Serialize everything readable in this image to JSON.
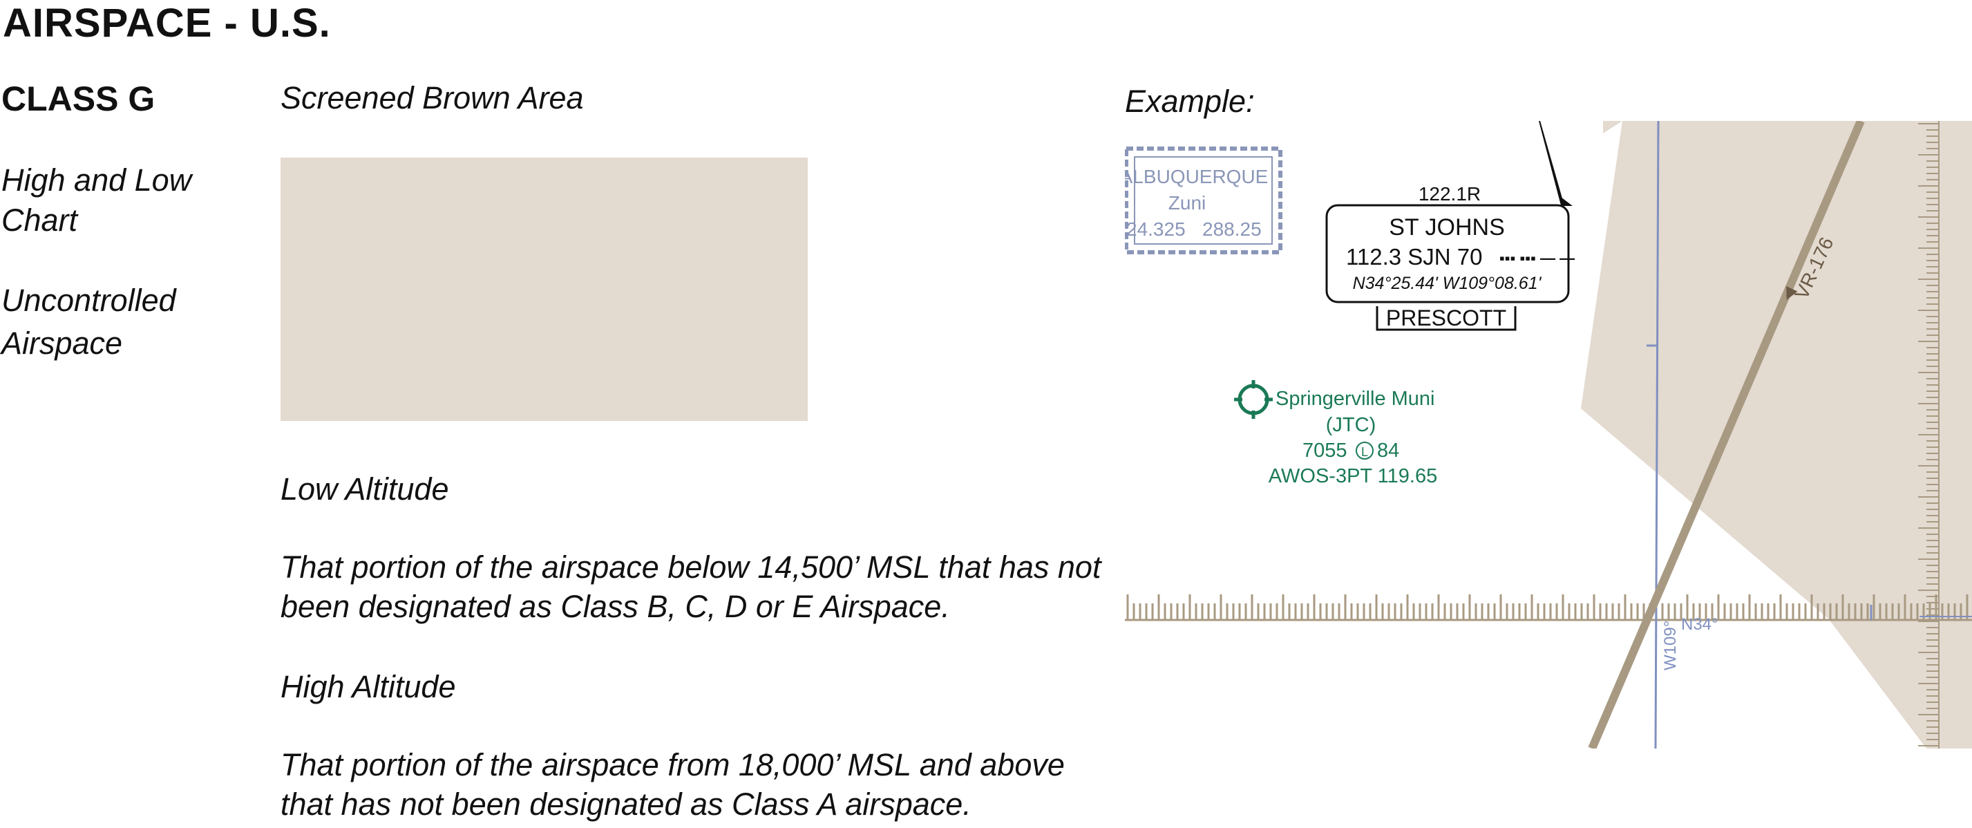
{
  "header": {
    "title": "AIRSPACE - U.S."
  },
  "left": {
    "class_label": "CLASS G",
    "chart_type": "High and Low Chart",
    "airspace_type": "Uncontrolled Airspace"
  },
  "legend": {
    "swatch_label": "Screened Brown Area",
    "swatch_color": "#e3dad0"
  },
  "low": {
    "heading": "Low Altitude",
    "text": "That portion of the airspace below 14,500’ MSL that has not been designated as Class B, C, D or E Airspace."
  },
  "high": {
    "heading": "High Altitude",
    "text": "That portion of the airspace from 18,000’ MSL and above that has not been designated as Class A airspace."
  },
  "example": {
    "label": "Example:",
    "fss_name": "ALBUQUERQUE",
    "fss_sub": "Zuni",
    "fss_freq_left": "24.325",
    "fss_freq_right": "288.25",
    "nav_freq": "122.1R",
    "nav_name": "ST JOHNS",
    "nav_ident": "112.3 SJN 70",
    "nav_morse": "▪▪▪ ▪▪▪ — —",
    "nav_coords": "N34°25.44' W109°08.61'",
    "nav_fss": "PRESCOTT",
    "airport_name": "Springerville Muni",
    "airport_id": "(JTC)",
    "airport_elev": "7055",
    "airport_lighting": "L",
    "airport_length": "84",
    "airport_awos": "AWOS-3PT 119.65",
    "route_label": "VR-176",
    "lat_label": "N34°",
    "lon_label": "W109°",
    "colors": {
      "shading": "#e3dad0",
      "route": "#a89a82",
      "fss_blue": "#8a96b8",
      "airport_green": "#1a7a55",
      "grid_blue": "#8090c0"
    }
  }
}
